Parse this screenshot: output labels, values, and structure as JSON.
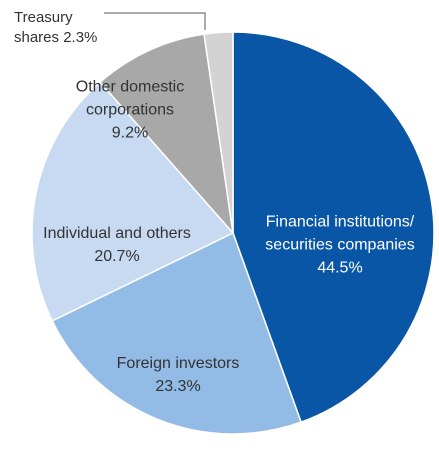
{
  "chart_data": {
    "type": "pie",
    "categories": [
      "Financial institutions/ securities companies",
      "Foreign investors",
      "Individual and others",
      "Other domestic corporations",
      "Treasury shares"
    ],
    "values": [
      44.5,
      23.3,
      20.7,
      9.2,
      2.3
    ],
    "value_labels": [
      "44.5%",
      "23.3%",
      "20.7%",
      "9.2%",
      "2.3%"
    ],
    "colors": [
      "#0a56a6",
      "#92bbe6",
      "#c7daf2",
      "#a8a8a8",
      "#d3d3d3"
    ]
  }
}
